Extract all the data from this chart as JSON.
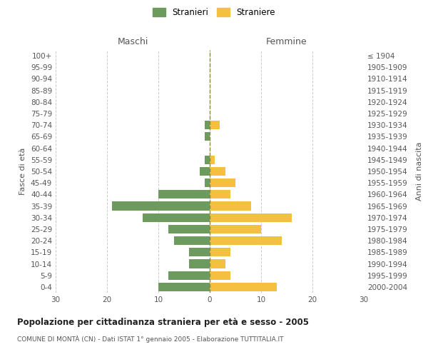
{
  "age_groups": [
    "0-4",
    "5-9",
    "10-14",
    "15-19",
    "20-24",
    "25-29",
    "30-34",
    "35-39",
    "40-44",
    "45-49",
    "50-54",
    "55-59",
    "60-64",
    "65-69",
    "70-74",
    "75-79",
    "80-84",
    "85-89",
    "90-94",
    "95-99",
    "100+"
  ],
  "birth_years": [
    "2000-2004",
    "1995-1999",
    "1990-1994",
    "1985-1989",
    "1980-1984",
    "1975-1979",
    "1970-1974",
    "1965-1969",
    "1960-1964",
    "1955-1959",
    "1950-1954",
    "1945-1949",
    "1940-1944",
    "1935-1939",
    "1930-1934",
    "1925-1929",
    "1920-1924",
    "1915-1919",
    "1910-1914",
    "1905-1909",
    "≤ 1904"
  ],
  "maschi": [
    10,
    8,
    4,
    4,
    7,
    8,
    13,
    19,
    10,
    1,
    2,
    1,
    0,
    1,
    1,
    0,
    0,
    0,
    0,
    0,
    0
  ],
  "femmine": [
    13,
    4,
    3,
    4,
    14,
    10,
    16,
    8,
    4,
    5,
    3,
    1,
    0,
    0,
    2,
    0,
    0,
    0,
    0,
    0,
    0
  ],
  "color_maschi": "#6d9b5e",
  "color_femmine": "#f5c040",
  "title": "Popolazione per cittadinanza straniera per età e sesso - 2005",
  "subtitle": "COMUNE DI MONTÀ (CN) - Dati ISTAT 1° gennaio 2005 - Elaborazione TUTTITALIA.IT",
  "ylabel_left": "Fasce di età",
  "ylabel_right": "Anni di nascita",
  "xlabel_maschi": "Maschi",
  "xlabel_femmine": "Femmine",
  "legend_maschi": "Stranieri",
  "legend_femmine": "Straniere",
  "xlim": 30,
  "background_color": "#ffffff",
  "grid_color": "#cccccc"
}
